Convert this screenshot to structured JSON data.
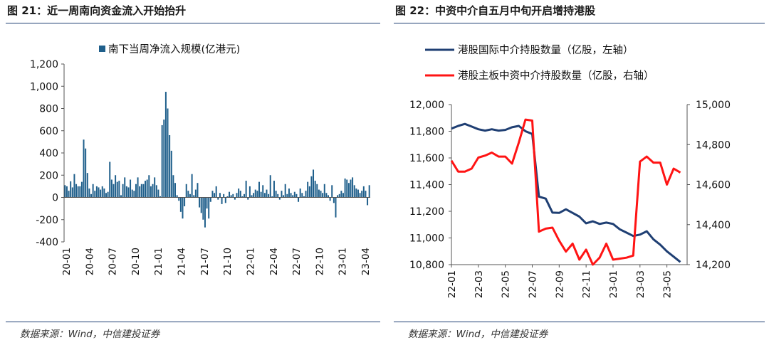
{
  "charts": [
    {
      "title": "图 21：近一周南向资金流入开始抬升",
      "source": "数据来源：Wind，中信建投证券",
      "chart_data": {
        "type": "bar",
        "legend": {
          "position": "top-center",
          "entries": [
            "南下当周净流入规模(亿港元)"
          ]
        },
        "series": [
          {
            "name": "南下当周净流入规模(亿港元)",
            "color": "#1f5f8b"
          }
        ],
        "x_tick_labels": [
          "20-01",
          "20-04",
          "20-07",
          "20-10",
          "21-01",
          "21-04",
          "21-07",
          "21-10",
          "22-01",
          "22-04",
          "22-07",
          "22-10",
          "23-01",
          "23-04"
        ],
        "y_tick_labels": [
          "1,200",
          "1,000",
          "800",
          "600",
          "400",
          "200",
          "0",
          "-200",
          "-400"
        ],
        "ylim": [
          -400,
          1200
        ],
        "grid": false,
        "weekly_values": [
          110,
          100,
          60,
          145,
          90,
          210,
          120,
          100,
          100,
          140,
          520,
          440,
          220,
          80,
          30,
          120,
          60,
          100,
          90,
          70,
          100,
          80,
          40,
          50,
          320,
          160,
          120,
          200,
          140,
          150,
          20,
          120,
          180,
          100,
          90,
          160,
          70,
          60,
          120,
          180,
          100,
          120,
          120,
          150,
          160,
          200,
          100,
          120,
          180,
          110,
          70,
          10,
          650,
          700,
          950,
          800,
          560,
          420,
          200,
          130,
          20,
          -30,
          -130,
          -190,
          -80,
          120,
          60,
          30,
          210,
          20,
          70,
          130,
          -90,
          -140,
          -200,
          -270,
          -100,
          -190,
          -40,
          60,
          40,
          100,
          -20,
          40,
          -60,
          30,
          -50,
          10,
          50,
          20,
          30,
          -20,
          40,
          80,
          60,
          10,
          30,
          150,
          -20,
          100,
          20,
          40,
          70,
          60,
          140,
          50,
          110,
          40,
          70,
          30,
          200,
          10,
          150,
          60,
          30,
          -20,
          60,
          20,
          120,
          30,
          80,
          40,
          20,
          50,
          30,
          -40,
          80,
          40,
          10,
          60,
          140,
          100,
          190,
          250,
          150,
          120,
          70,
          60,
          40,
          120,
          40,
          20,
          -30,
          110,
          -50,
          -180,
          20,
          30,
          60,
          40,
          170,
          160,
          130,
          160,
          180,
          110,
          80,
          70,
          40,
          60,
          100,
          60,
          -70,
          110
        ]
      }
    },
    {
      "title": "图 22：中资中介自五月中旬开启增持港股",
      "source": "数据来源：Wind，中信建投证券",
      "chart_data": {
        "type": "line",
        "legend": {
          "position": "top-left",
          "entries": [
            "港股国际中介持股数量（亿股，左轴）",
            "港股主板中资中介持股数量（亿股，右轴）"
          ]
        },
        "x_tick_labels": [
          "22-01",
          "22-03",
          "22-05",
          "22-07",
          "22-09",
          "22-11",
          "23-01",
          "23-03",
          "23-05"
        ],
        "y_left_tick_labels": [
          "12,000",
          "11,800",
          "11,600",
          "11,400",
          "11,200",
          "11,000",
          "10,800"
        ],
        "y_right_tick_labels": [
          "15,000",
          "14,800",
          "14,600",
          "14,400",
          "14,200"
        ],
        "ylim_left": [
          10800,
          12000
        ],
        "ylim_right": [
          14200,
          15000
        ],
        "grid": false,
        "series": [
          {
            "name": "港股国际中介持股数量（亿股，左轴）",
            "axis": "left",
            "color": "#1f3f73",
            "x_month_offset": [
              0,
              0.5,
              1,
              1.5,
              2,
              2.5,
              3,
              3.5,
              4,
              4.5,
              5,
              5.5,
              6,
              6.5,
              7,
              7.5,
              8,
              8.5,
              9,
              9.5,
              10,
              10.5,
              11,
              11.5,
              12,
              12.5,
              13,
              13.5,
              14,
              14.5,
              15,
              15.5,
              16,
              16.5,
              17
            ],
            "values": [
              11820,
              11840,
              11855,
              11835,
              11815,
              11805,
              11815,
              11805,
              11810,
              11830,
              11840,
              11800,
              11780,
              11310,
              11295,
              11190,
              11188,
              11215,
              11188,
              11160,
              11110,
              11125,
              11105,
              11115,
              11105,
              11065,
              11040,
              11015,
              11025,
              11050,
              10990,
              10950,
              10900,
              10860,
              10820
            ]
          },
          {
            "name": "港股主板中资中介持股数量（亿股，右轴）",
            "axis": "right",
            "color": "#ff1414",
            "x_month_offset": [
              0,
              0.5,
              1,
              1.5,
              2,
              2.5,
              3,
              3.5,
              4,
              4.5,
              5,
              5.5,
              6,
              6.5,
              7,
              7.5,
              8,
              8.5,
              9,
              9.5,
              10,
              10.5,
              11,
              11.5,
              12,
              12.5,
              13,
              13.5,
              14,
              14.5,
              15,
              15.5,
              16,
              16.5,
              17
            ],
            "values": [
              14720,
              14665,
              14665,
              14680,
              14735,
              14745,
              14760,
              14740,
              14740,
              14705,
              14810,
              14925,
              14920,
              14365,
              14380,
              14385,
              14320,
              14265,
              14305,
              14225,
              14275,
              14200,
              14235,
              14305,
              14225,
              14230,
              14235,
              14245,
              14715,
              14740,
              14710,
              14710,
              14600,
              14680,
              14660
            ]
          }
        ]
      }
    }
  ]
}
